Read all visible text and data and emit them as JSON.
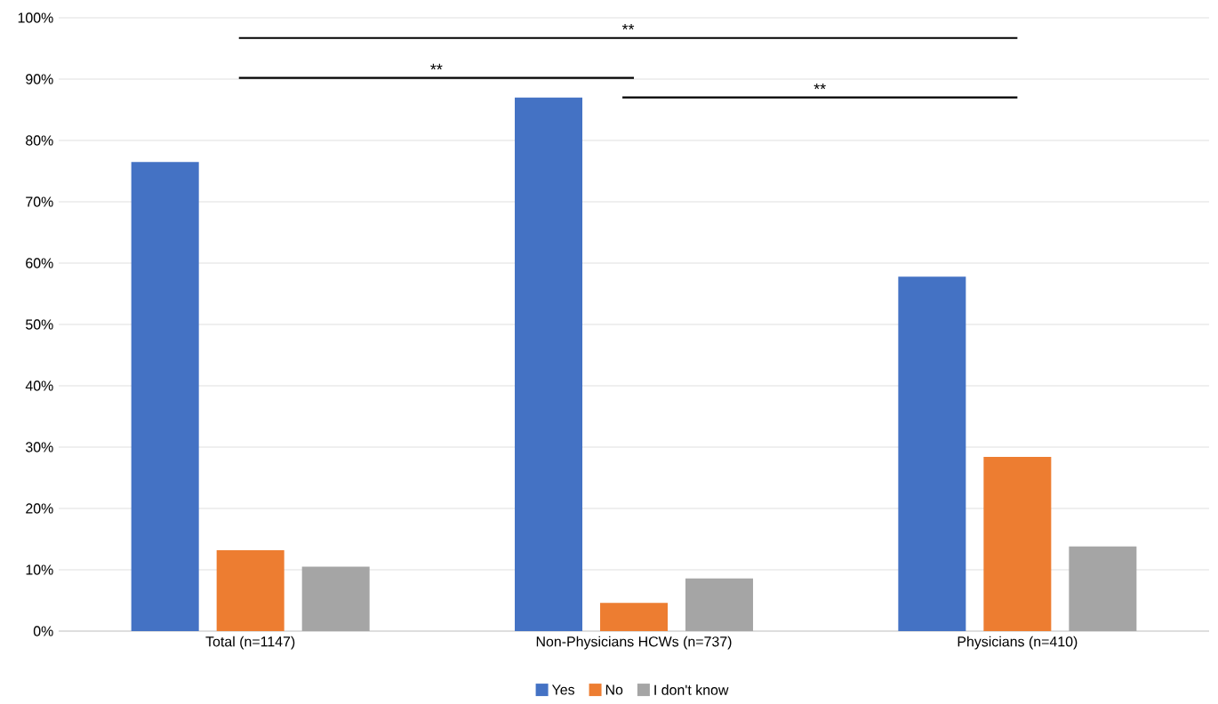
{
  "chart_data": {
    "type": "bar",
    "categories": [
      "Total (n=1147)",
      "Non-Physicians HCWs (n=737)",
      "Physicians (n=410)"
    ],
    "series": [
      {
        "name": "Yes",
        "color": "#4472c4",
        "values": [
          76.5,
          87,
          57.8
        ]
      },
      {
        "name": "No",
        "color": "#ed7d31",
        "values": [
          13.2,
          4.6,
          28.4
        ]
      },
      {
        "name": "I don't know",
        "color": "#a5a5a5",
        "values": [
          10.5,
          8.6,
          13.8
        ]
      }
    ],
    "ylim": [
      0,
      100
    ],
    "yticks": [
      {
        "value": 0,
        "label": "0%"
      },
      {
        "value": 10,
        "label": "10%"
      },
      {
        "value": 20,
        "label": "20%"
      },
      {
        "value": 30,
        "label": "30%"
      },
      {
        "value": 40,
        "label": "40%"
      },
      {
        "value": 50,
        "label": "50%"
      },
      {
        "value": 60,
        "label": "60%"
      },
      {
        "value": 70,
        "label": "70%"
      },
      {
        "value": 80,
        "label": "80%"
      },
      {
        "value": 90,
        "label": "90%"
      },
      {
        "value": 100,
        "label": "100%"
      }
    ],
    "grid": "y",
    "legend": "bottom",
    "annotations": [
      "**",
      "**",
      "**"
    ]
  }
}
